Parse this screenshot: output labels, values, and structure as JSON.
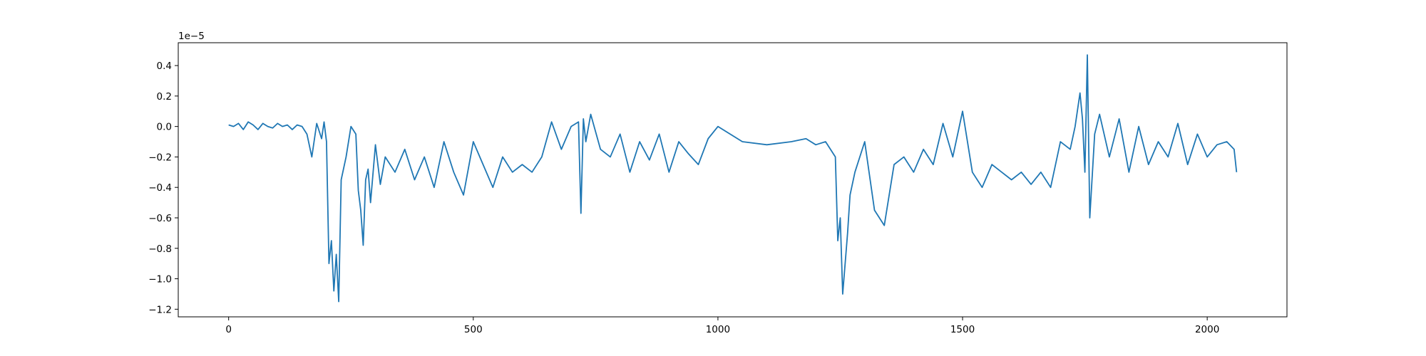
{
  "chart_data": {
    "type": "line",
    "title": "",
    "xlabel": "",
    "ylabel": "",
    "y_offset_label": "1e−5",
    "xlim": [
      -103,
      2163
    ],
    "ylim": [
      -1.25,
      0.55
    ],
    "x_ticks": [
      0,
      500,
      1000,
      1500,
      2000
    ],
    "x_tick_labels": [
      "0",
      "500",
      "1000",
      "1500",
      "2000"
    ],
    "y_ticks": [
      0.4,
      0.2,
      0.0,
      -0.2,
      -0.4,
      -0.6,
      -0.8,
      -1.0,
      -1.2
    ],
    "y_tick_labels": [
      "0.4",
      "0.2",
      "0.0",
      "−0.2",
      "−0.4",
      "−0.6",
      "−0.8",
      "−1.0",
      "−1.2"
    ],
    "grid": false,
    "line_color": "#1f77b4",
    "series": [
      {
        "x": [
          0,
          10,
          20,
          30,
          40,
          50,
          60,
          70,
          80,
          90,
          100,
          110,
          120,
          130,
          140,
          150,
          160,
          170,
          180,
          190,
          195,
          200,
          205,
          210,
          215,
          220,
          225,
          230,
          240,
          250,
          260,
          265,
          270,
          275,
          280,
          285,
          290,
          300,
          310,
          320,
          340,
          360,
          380,
          400,
          420,
          440,
          460,
          480,
          500,
          520,
          540,
          560,
          580,
          600,
          620,
          640,
          660,
          680,
          700,
          715,
          720,
          725,
          730,
          740,
          760,
          780,
          800,
          820,
          840,
          860,
          880,
          900,
          920,
          940,
          960,
          980,
          1000,
          1050,
          1100,
          1150,
          1180,
          1200,
          1220,
          1240,
          1245,
          1250,
          1255,
          1260,
          1265,
          1270,
          1280,
          1300,
          1320,
          1340,
          1360,
          1380,
          1400,
          1420,
          1440,
          1460,
          1480,
          1500,
          1520,
          1540,
          1560,
          1580,
          1600,
          1620,
          1640,
          1660,
          1680,
          1700,
          1720,
          1730,
          1740,
          1745,
          1750,
          1755,
          1760,
          1770,
          1780,
          1800,
          1820,
          1840,
          1860,
          1880,
          1900,
          1920,
          1940,
          1960,
          1980,
          2000,
          2020,
          2040,
          2055,
          2060
        ],
        "y": [
          0.01,
          0.0,
          0.02,
          -0.02,
          0.03,
          0.01,
          -0.02,
          0.02,
          0.0,
          -0.01,
          0.02,
          0.0,
          0.01,
          -0.02,
          0.01,
          0.0,
          -0.05,
          -0.2,
          0.02,
          -0.08,
          0.03,
          -0.1,
          -0.9,
          -0.75,
          -1.08,
          -0.84,
          -1.15,
          -0.35,
          -0.2,
          0.0,
          -0.05,
          -0.42,
          -0.55,
          -0.78,
          -0.35,
          -0.28,
          -0.5,
          -0.12,
          -0.38,
          -0.2,
          -0.3,
          -0.15,
          -0.35,
          -0.2,
          -0.4,
          -0.1,
          -0.3,
          -0.45,
          -0.1,
          -0.25,
          -0.4,
          -0.2,
          -0.3,
          -0.25,
          -0.3,
          -0.2,
          0.03,
          -0.15,
          0.0,
          0.03,
          -0.57,
          0.05,
          -0.1,
          0.08,
          -0.15,
          -0.2,
          -0.05,
          -0.3,
          -0.1,
          -0.22,
          -0.05,
          -0.3,
          -0.1,
          -0.18,
          -0.25,
          -0.08,
          0.0,
          -0.1,
          -0.12,
          -0.1,
          -0.08,
          -0.12,
          -0.1,
          -0.2,
          -0.75,
          -0.6,
          -1.1,
          -0.9,
          -0.7,
          -0.45,
          -0.3,
          -0.1,
          -0.55,
          -0.65,
          -0.25,
          -0.2,
          -0.3,
          -0.15,
          -0.25,
          0.02,
          -0.2,
          0.1,
          -0.3,
          -0.4,
          -0.25,
          -0.3,
          -0.35,
          -0.3,
          -0.38,
          -0.3,
          -0.4,
          -0.1,
          -0.15,
          0.0,
          0.22,
          0.05,
          -0.3,
          0.47,
          -0.6,
          -0.05,
          0.08,
          -0.2,
          0.05,
          -0.3,
          0.0,
          -0.25,
          -0.1,
          -0.2,
          0.02,
          -0.25,
          -0.05,
          -0.2,
          -0.12,
          -0.1,
          -0.15,
          -0.3
        ]
      }
    ]
  }
}
